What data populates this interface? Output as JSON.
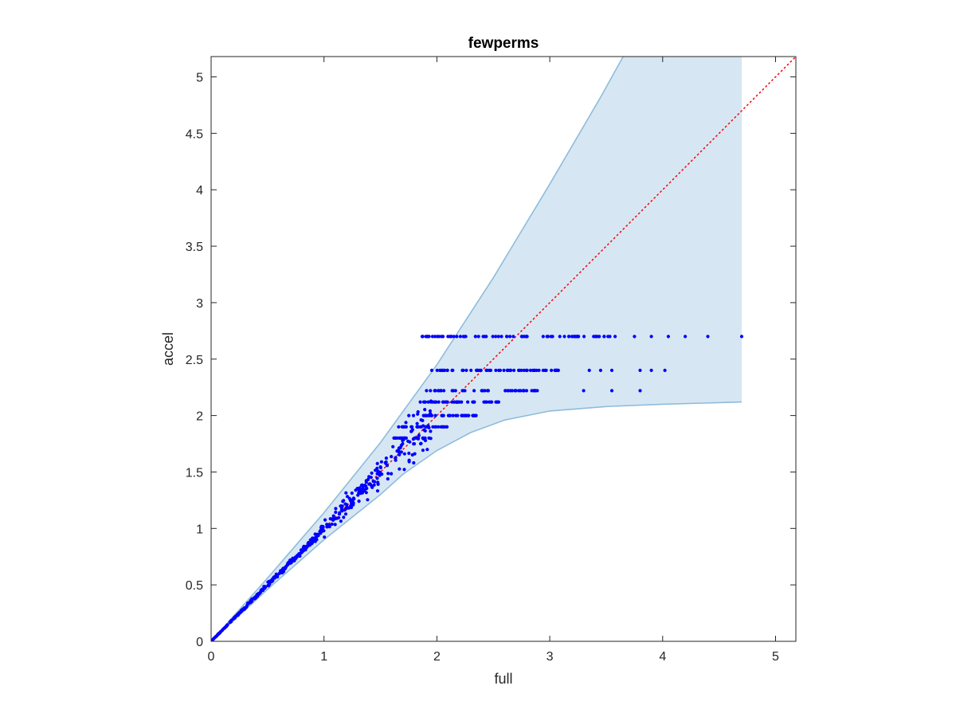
{
  "chart_data": {
    "type": "scatter",
    "title": "fewperms",
    "xlabel": "full",
    "ylabel": "accel",
    "xlim": [
      0,
      5.18
    ],
    "ylim": [
      0,
      5.18
    ],
    "xticks": [
      0,
      1,
      2,
      3,
      4,
      5
    ],
    "yticks": [
      0,
      0.5,
      1,
      1.5,
      2,
      2.5,
      3,
      3.5,
      4,
      4.5,
      5
    ],
    "xtick_labels": [
      "0",
      "1",
      "2",
      "3",
      "4",
      "5"
    ],
    "ytick_labels": [
      "0",
      "0.5",
      "1",
      "1.5",
      "2",
      "2.5",
      "3",
      "3.5",
      "4",
      "4.5",
      "5"
    ],
    "grid": false,
    "box": true,
    "colors": {
      "points": "#0000ff",
      "band_fill": "#d6e7f3",
      "band_edge": "#8fbcdb",
      "reference_line": "#ff0000",
      "axes": "#262626"
    },
    "reference_line": {
      "style": "dotted",
      "from": [
        0,
        0
      ],
      "to": [
        5.18,
        5.18
      ]
    },
    "band": {
      "x_max": 4.7,
      "upper": [
        [
          0,
          0
        ],
        [
          0.5,
          0.56
        ],
        [
          1,
          1.14
        ],
        [
          1.5,
          1.76
        ],
        [
          2,
          2.45
        ],
        [
          2.5,
          3.22
        ],
        [
          3,
          4.05
        ],
        [
          3.45,
          4.82
        ],
        [
          3.65,
          5.18
        ]
      ],
      "lower": [
        [
          0,
          0
        ],
        [
          0.5,
          0.46
        ],
        [
          1,
          0.9
        ],
        [
          1.5,
          1.3
        ],
        [
          1.7,
          1.48
        ],
        [
          2,
          1.69
        ],
        [
          2.3,
          1.85
        ],
        [
          2.6,
          1.96
        ],
        [
          3,
          2.04
        ],
        [
          3.5,
          2.08
        ],
        [
          4,
          2.1
        ],
        [
          4.7,
          2.12
        ]
      ]
    },
    "scatter_clusters": [
      {
        "x_from": 0.0,
        "x_to": 1.0,
        "spread": 0.035,
        "count": 260
      },
      {
        "x_from": 1.0,
        "x_to": 1.5,
        "spread": 0.075,
        "count": 110
      },
      {
        "x_from": 1.5,
        "x_to": 1.95,
        "spread": 0.11,
        "count": 70
      }
    ],
    "scatter_levels": [
      {
        "y": 2.7,
        "x_from": 1.85,
        "x_to": 3.6,
        "count": 70,
        "extra_x": [
          2.02,
          2.15,
          3.75,
          3.9,
          4.05,
          4.2,
          4.4,
          4.7
        ]
      },
      {
        "y": 2.4,
        "x_from": 1.95,
        "x_to": 3.1,
        "count": 60,
        "extra_x": [
          3.35,
          3.45,
          3.55,
          3.8,
          3.9,
          4.02
        ]
      },
      {
        "y": 2.22,
        "x_from": 1.9,
        "x_to": 2.9,
        "count": 45,
        "extra_x": [
          3.3,
          3.55,
          3.8
        ]
      },
      {
        "y": 2.12,
        "x_from": 1.8,
        "x_to": 2.55,
        "count": 40,
        "extra_x": []
      },
      {
        "y": 2.0,
        "x_from": 1.75,
        "x_to": 2.35,
        "count": 40,
        "extra_x": []
      },
      {
        "y": 1.9,
        "x_from": 1.65,
        "x_to": 2.1,
        "count": 30,
        "extra_x": []
      },
      {
        "y": 1.8,
        "x_from": 1.6,
        "x_to": 1.95,
        "count": 20,
        "extra_x": []
      }
    ]
  }
}
